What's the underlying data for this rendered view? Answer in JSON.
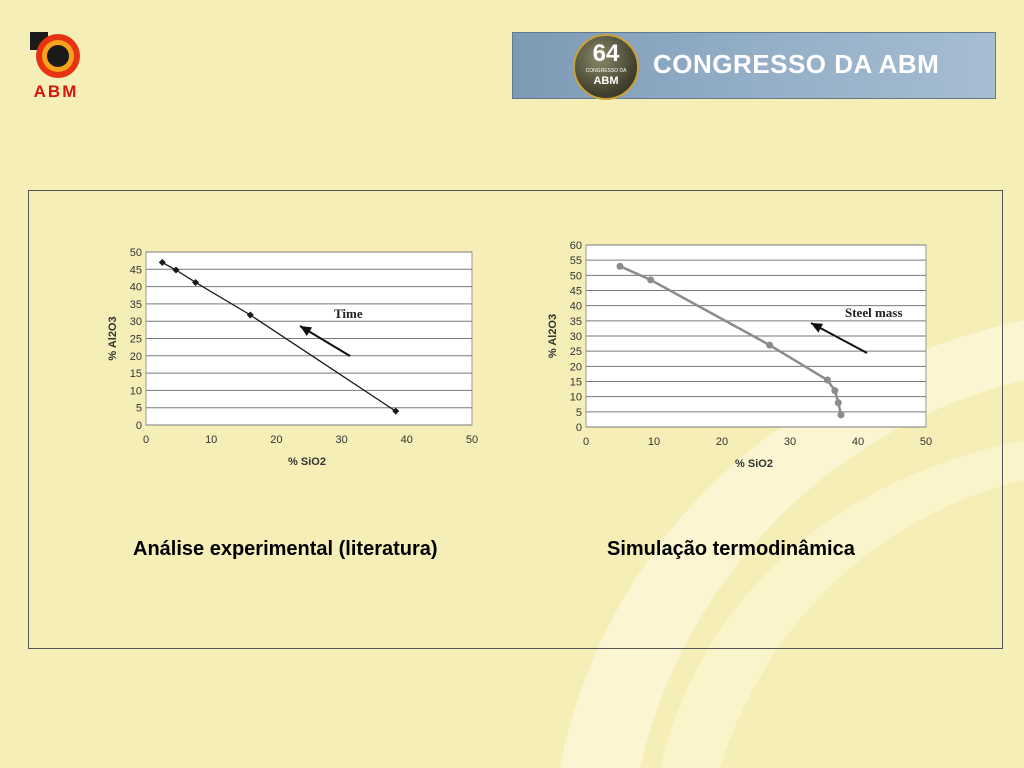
{
  "header": {
    "logo_text": "ABM",
    "banner_badge_number": "64",
    "banner_badge_small": "CONGRESSO DA",
    "banner_badge_org": "ABM",
    "banner_title": "CONGRESSO DA ABM"
  },
  "colors": {
    "background": "#f5efb7",
    "logo_red": "#d4170e",
    "banner_blue": "#8fabc4",
    "left_series": "#1a1a1a",
    "right_series": "#8c8c8c"
  },
  "chart_data": [
    {
      "type": "scatter",
      "xlabel": "% SiO2",
      "ylabel": "% Al2O3",
      "xlim": [
        0,
        50
      ],
      "ylim": [
        0,
        50
      ],
      "xticks": [
        "0",
        "10",
        "20",
        "30",
        "40",
        "50"
      ],
      "yticks": [
        "0",
        "5",
        "10",
        "15",
        "20",
        "25",
        "30",
        "35",
        "40",
        "45",
        "50"
      ],
      "grid": "horizontal",
      "series": [
        {
          "x": [
            2.5,
            4.6,
            7.6,
            16.0,
            38.3
          ],
          "y": [
            47.0,
            44.8,
            41.2,
            31.8,
            4.0
          ]
        }
      ],
      "annotation": {
        "text": "Time"
      }
    },
    {
      "type": "line",
      "xlabel": "% SiO2",
      "ylabel": "% Al2O3",
      "xlim": [
        0,
        50
      ],
      "ylim": [
        0,
        60
      ],
      "xticks": [
        "0",
        "10",
        "20",
        "30",
        "40",
        "50"
      ],
      "yticks": [
        "0",
        "5",
        "10",
        "15",
        "20",
        "25",
        "30",
        "35",
        "40",
        "45",
        "50",
        "55",
        "60"
      ],
      "grid": "horizontal",
      "series": [
        {
          "x": [
            5.0,
            9.5,
            27.0,
            35.5,
            36.6,
            37.1,
            37.5
          ],
          "y": [
            53.0,
            48.5,
            27.0,
            15.5,
            12.0,
            8.0,
            4.0
          ]
        }
      ],
      "annotation": {
        "text": "Steel mass"
      }
    }
  ],
  "captions": {
    "left": "Análise experimental (literatura)",
    "right": "Simulação termodinâmica"
  }
}
